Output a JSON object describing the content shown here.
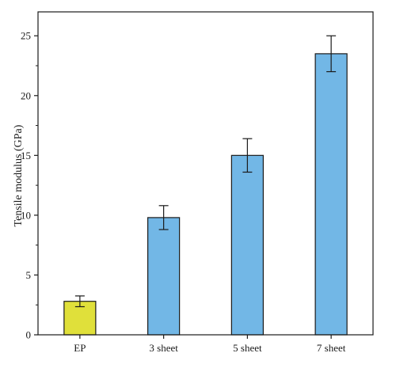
{
  "chart_data": {
    "type": "bar",
    "title": "",
    "xlabel": "",
    "ylabel": "Tensile modulus (GPa)",
    "categories": [
      "EP",
      "3 sheet",
      "5 sheet",
      "7 sheet"
    ],
    "values": [
      2.8,
      9.8,
      15.0,
      23.5
    ],
    "errors": [
      0.45,
      1.0,
      1.4,
      1.5
    ],
    "bar_colors": [
      "#e0e03a",
      "#72b7e6",
      "#72b7e6",
      "#72b7e6"
    ],
    "bar_edge_color": "#1a1a1a",
    "ylim": [
      0,
      27
    ],
    "yticks": [
      0,
      5,
      10,
      15,
      20,
      25
    ],
    "grid": false,
    "legend": "none"
  }
}
